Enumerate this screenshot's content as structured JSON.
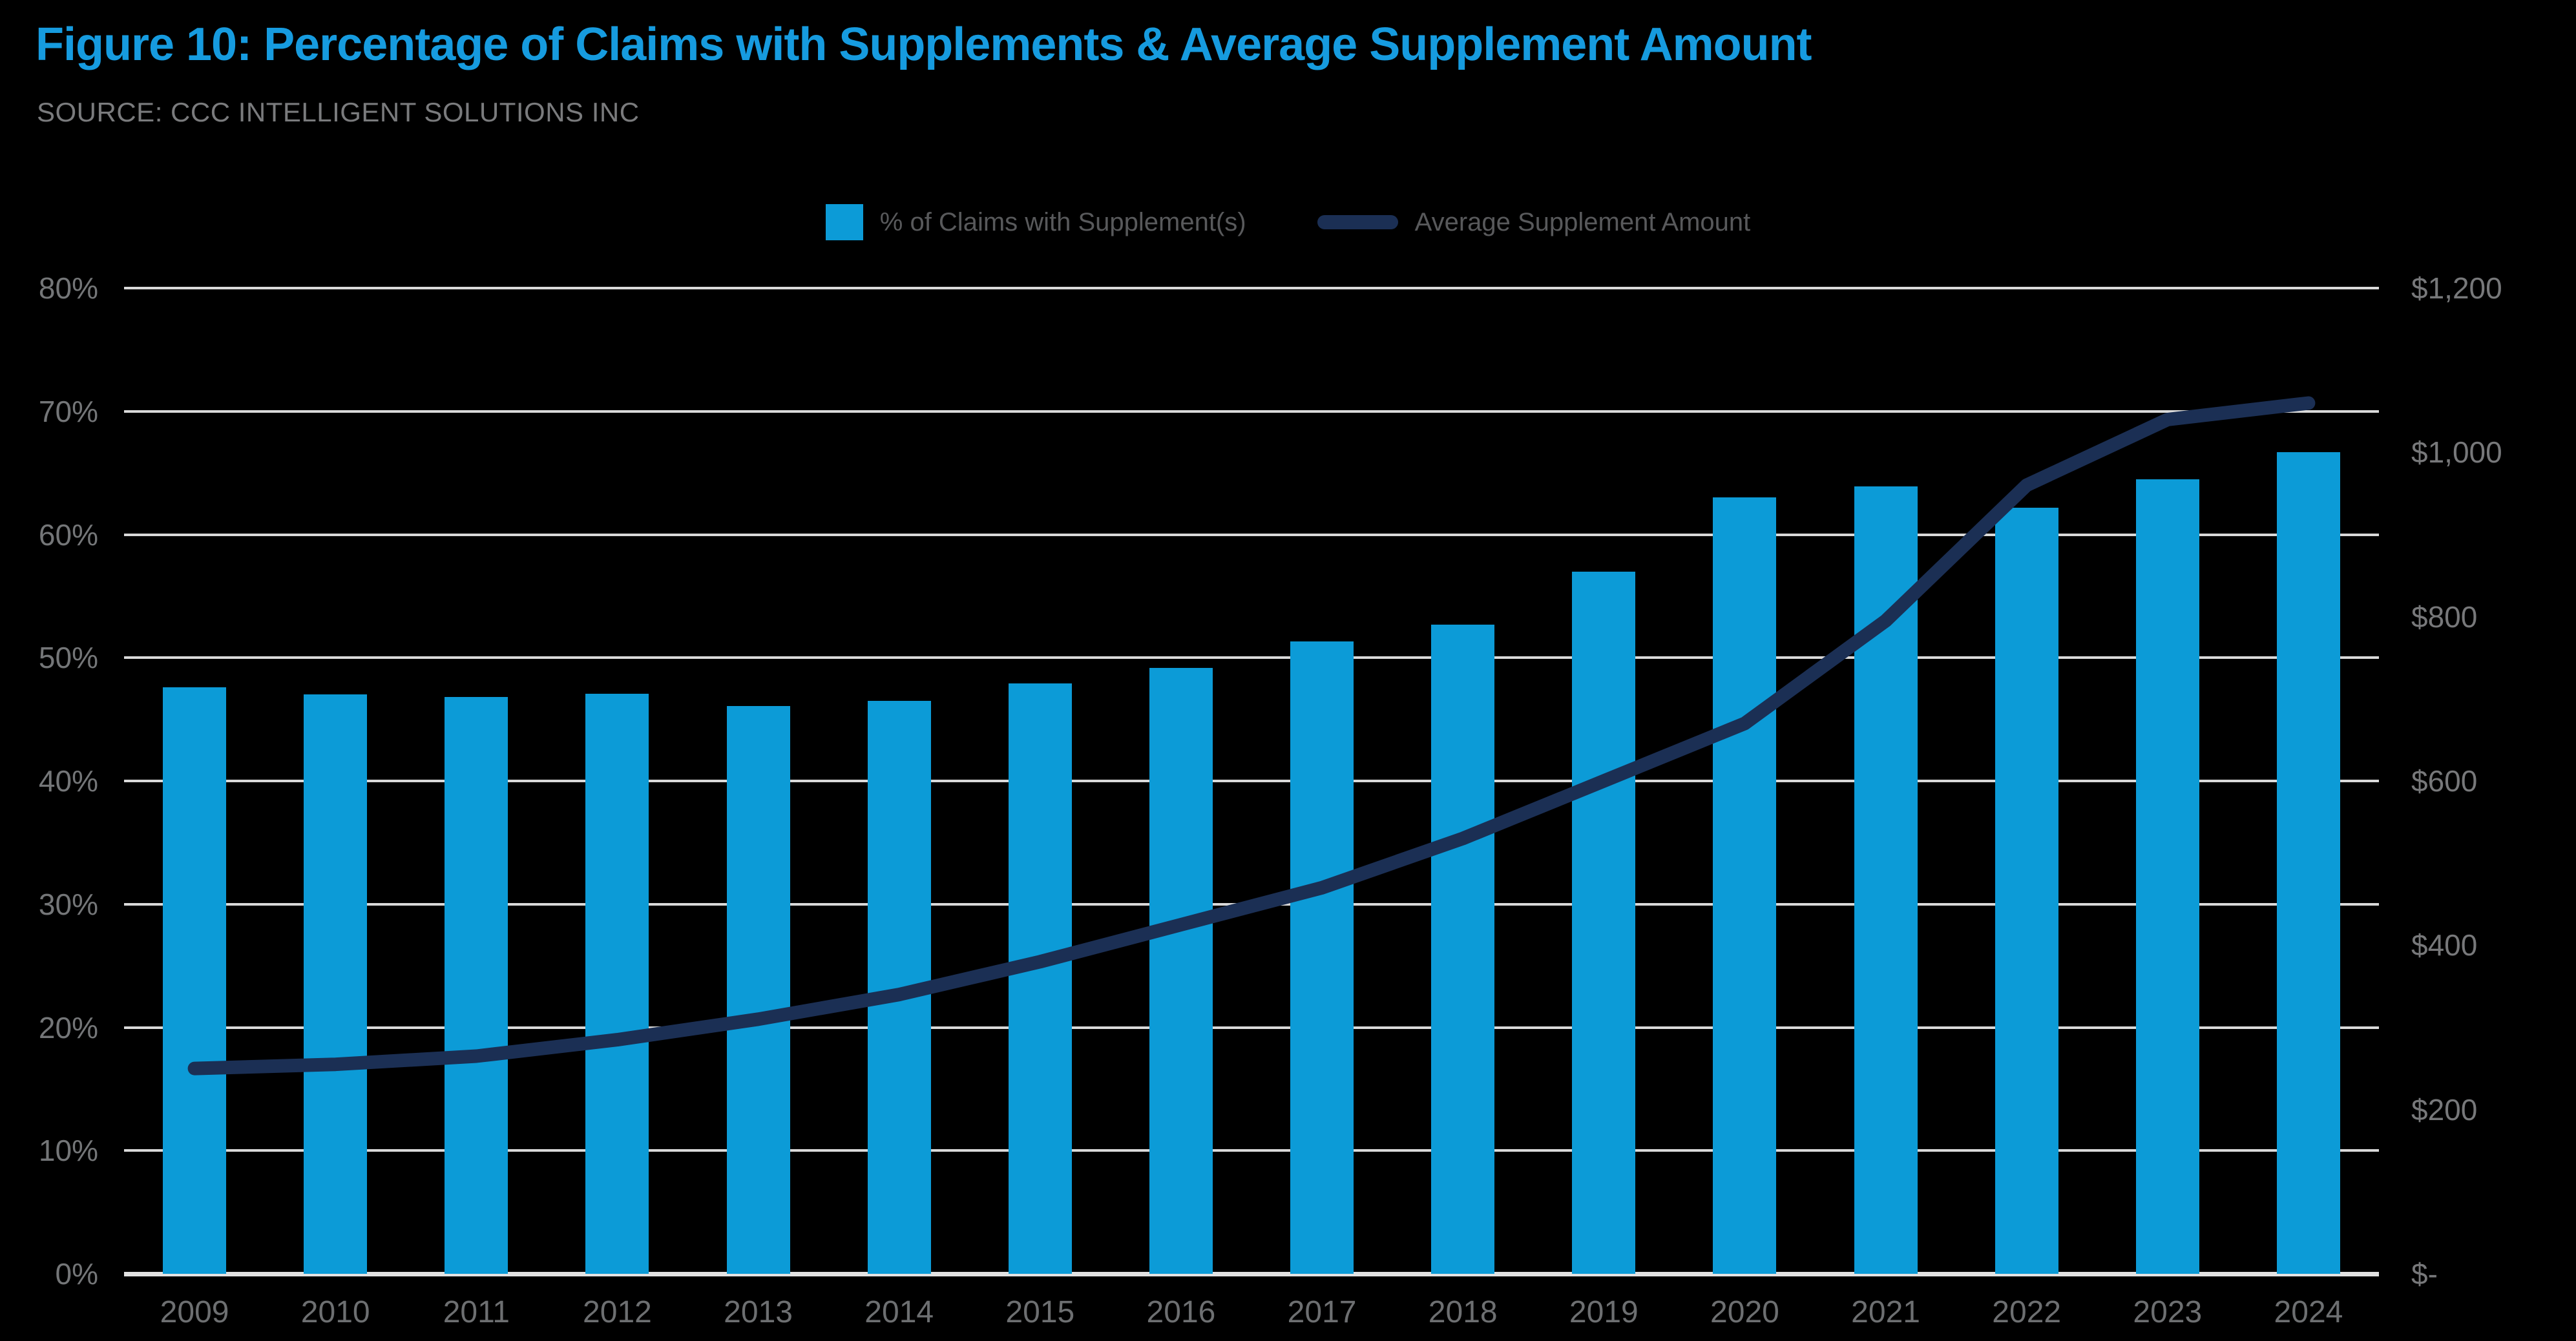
{
  "header": {
    "title": "Figure 10: Percentage of Claims with Supplements & Average Supplement Amount",
    "source": "SOURCE: CCC INTELLIGENT SOLUTIONS INC"
  },
  "legend": {
    "items": [
      {
        "label": "% of Claims with Supplement(s)",
        "swatch": "bar-swatch"
      },
      {
        "label": "Average Supplement Amount",
        "swatch": "line-swatch"
      }
    ]
  },
  "colors": {
    "background": "#000000",
    "title": "#169bdf",
    "bar": "#0c9bd7",
    "line": "#1b2f54",
    "gridline": "#d9d9d9",
    "baseline": "#e2e2e2",
    "axis_label": "#747678",
    "x_label": "#6d6f71",
    "legend_text": "#58595b",
    "source_text": "#7a7b7d"
  },
  "chart_data": {
    "type": "bar",
    "subtype": "dual-axis-bar-line-combo",
    "title": "Figure 10: Percentage of Claims with Supplements & Average Supplement Amount",
    "categories": [
      "2009",
      "2010",
      "2011",
      "2012",
      "2013",
      "2014",
      "2015",
      "2016",
      "2017",
      "2018",
      "2019",
      "2020",
      "2021",
      "2022",
      "2023",
      "2024"
    ],
    "series": [
      {
        "name": "% of Claims with Supplement(s)",
        "type": "bar",
        "axis": "left",
        "unit": "percent",
        "values": [
          47.6,
          47.0,
          46.8,
          47.1,
          46.1,
          46.5,
          47.9,
          49.2,
          51.3,
          52.7,
          57.0,
          63.0,
          63.9,
          62.2,
          64.5,
          66.7
        ]
      },
      {
        "name": "Average Supplement Amount",
        "type": "line",
        "axis": "right",
        "unit": "USD",
        "values": [
          250,
          255,
          265,
          285,
          310,
          340,
          380,
          425,
          470,
          530,
          600,
          670,
          795,
          960,
          1040,
          1060
        ]
      }
    ],
    "left_axis": {
      "min": 0,
      "max": 80,
      "tick_step": 10,
      "tick_labels": [
        "0%",
        "10%",
        "20%",
        "30%",
        "40%",
        "50%",
        "60%",
        "70%",
        "80%"
      ]
    },
    "right_axis": {
      "min": 0,
      "max": 1200,
      "tick_step": 200,
      "tick_labels": [
        "$-",
        "$200",
        "$400",
        "$600",
        "$800",
        "$1,000",
        "$1,200"
      ]
    },
    "grid": "horizontal",
    "legend_position": "top-center",
    "background": "black"
  }
}
